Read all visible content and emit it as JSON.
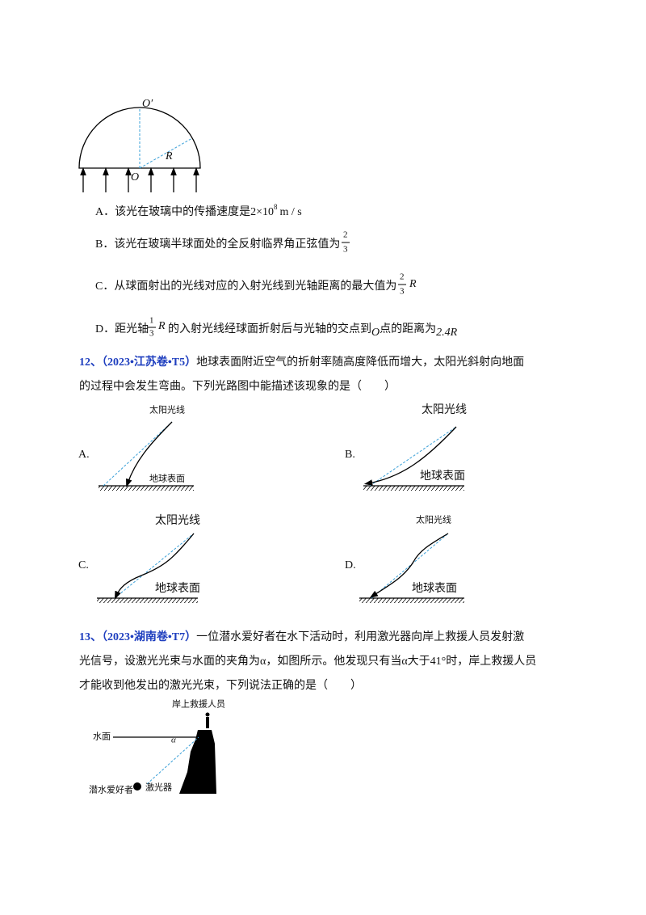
{
  "q11": {
    "figure": {
      "o_prime": "O′",
      "o": "O",
      "r": "R"
    },
    "options": [
      {
        "label": "A．",
        "parts": [
          "该光在玻璃中的传播速度是",
          "2×10",
          "8",
          "m / s"
        ]
      },
      {
        "label": "B．",
        "parts": [
          "该光在玻璃半球面处的全反射临界角正弦值为",
          "2",
          "3"
        ]
      },
      {
        "label": "C．",
        "parts": [
          "从球面射出的光线对应的入射光线到光轴距离的最大值为",
          "2",
          "3",
          "R"
        ]
      },
      {
        "label": "D．",
        "parts": [
          "距光轴",
          "1",
          "3",
          "R",
          "的入射光线经球面折射后与光轴的交点到",
          "O",
          "点的距离为",
          "2.4R"
        ]
      }
    ]
  },
  "q12": {
    "number": "12、（2023•江苏卷•T5）",
    "text": [
      "地球表面附近空气的折射率随高度降低而增大，太阳光斜射向地面",
      "的过程中会发生弯曲。下列光路图中能描述该现象的是（　　）"
    ],
    "diagrams": [
      {
        "label": "A.",
        "sun": "太阳光线",
        "ground": "地球表面"
      },
      {
        "label": "B.",
        "sun": "太阳光线",
        "ground": "地球表面"
      },
      {
        "label": "C.",
        "sun": "太阳光线",
        "ground": "地球表面"
      },
      {
        "label": "D.",
        "sun": "太阳光线",
        "ground": "地球表面"
      }
    ]
  },
  "q13": {
    "number": "13、（2023•湖南卷•T7）",
    "text": [
      "一位潜水爱好者在水下活动时，利用激光器向岸上救援人员发射激",
      "光信号，设激光光束与水面的夹角为α，如图所示。他发现只有当α大于41°时，岸上救援人员",
      "才能收到他发出的激光光束，下列说法正确的是（　　）"
    ],
    "figure": {
      "rescuer": "岸上救援人员",
      "water": "水面",
      "alpha": "α",
      "diver": "潜水爱好者",
      "laser": "激光器"
    }
  }
}
